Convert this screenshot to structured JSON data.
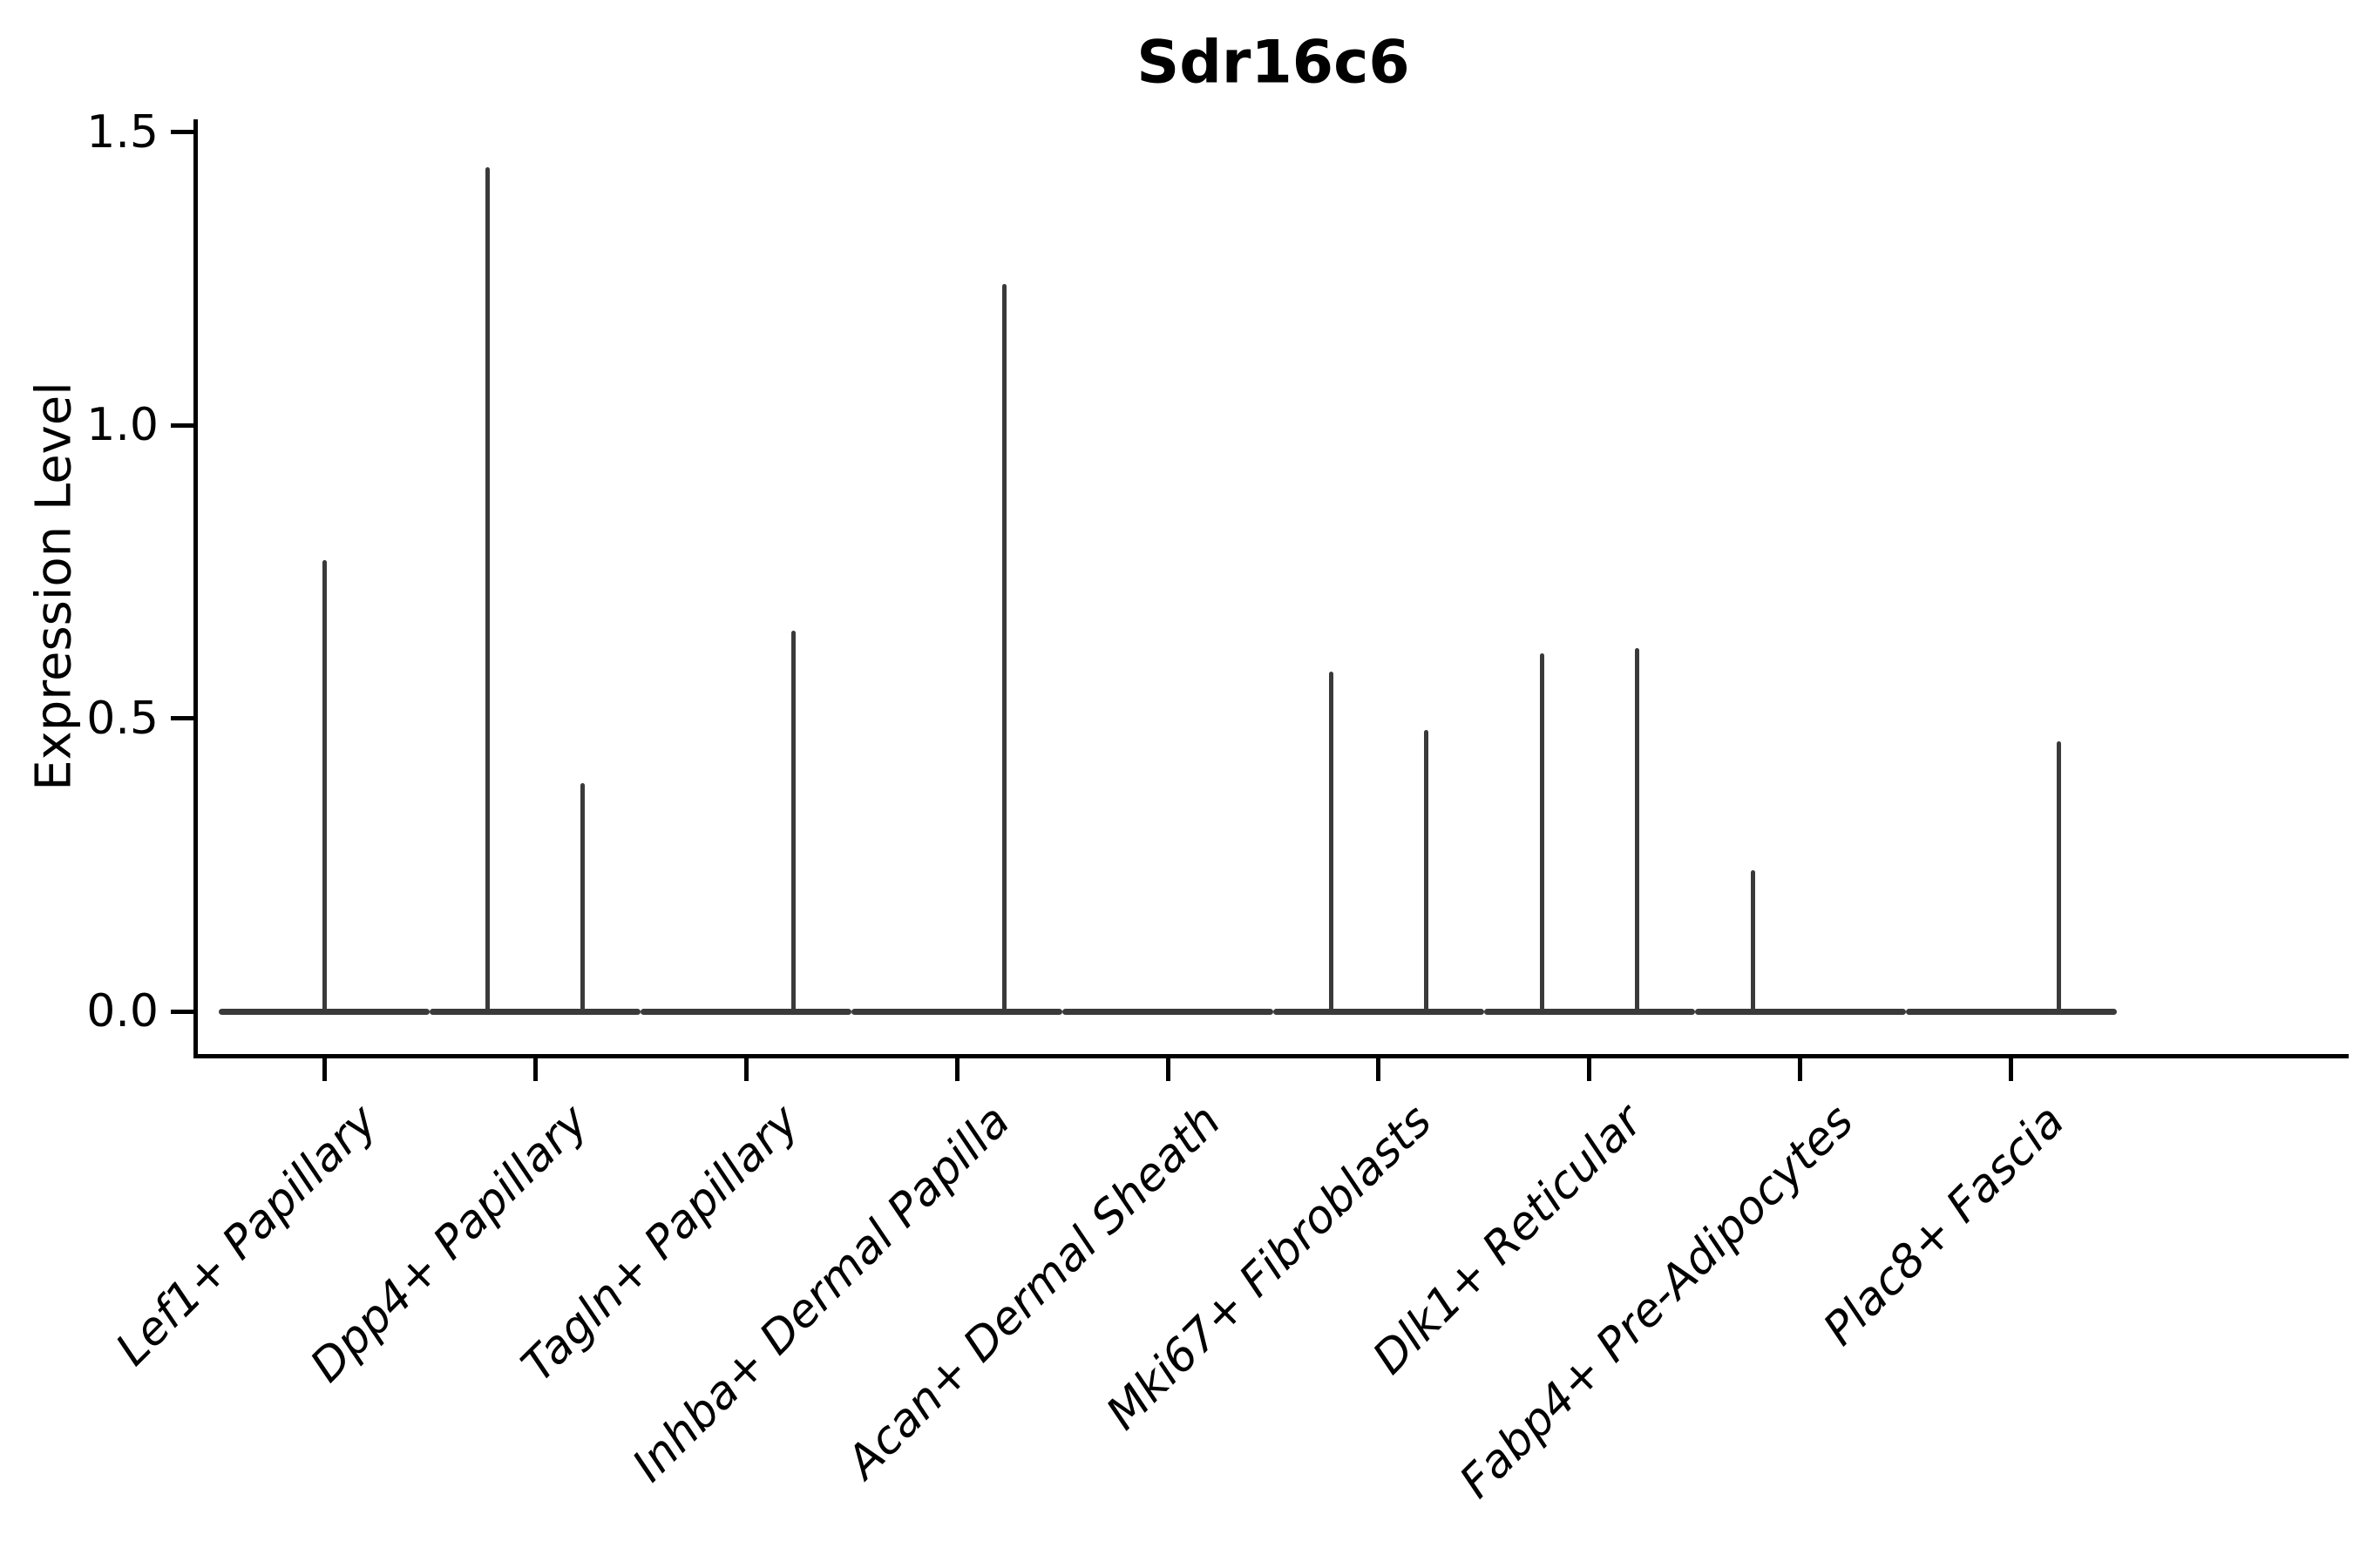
{
  "style": {
    "violin_color": "#3a3a3a",
    "axis_color": "#000000",
    "background": "#ffffff",
    "text_color": "#000000"
  },
  "chart_data": {
    "type": "violin",
    "title": "Sdr16c6",
    "xlabel": "",
    "ylabel": "Expression Level",
    "y_ticks": [
      0.0,
      0.5,
      1.0,
      1.5
    ],
    "y_tick_labels": [
      "0.0",
      "0.5",
      "1.0",
      "1.5"
    ],
    "ylim": [
      -0.07,
      1.53
    ],
    "grid": false,
    "legend": "none",
    "x_tick_label_rotation": 45,
    "categories": [
      "Lef1+ Papillary",
      "Dpp4+ Papillary",
      "Tagln+ Papillary",
      "Inhba+ Dermal Papilla",
      "Acan+ Dermal Sheath",
      "Mki67+ Fibroblasts",
      "Dlk1+ Reticular",
      "Fabp4+ Pre-Adipocytes",
      "Plac8+ Fascia"
    ],
    "description": "Sparse single-cell expression violins: each violin collapses to a flat horizontal bar at 0 with a hairline vertical density tail reaching the maximum expressed value. Offset is in category-width units from the category center (split/dodged violins).",
    "violins": [
      {
        "category": "Lef1+ Papillary",
        "groups": [
          {
            "offset": 0.0,
            "max": 0.77
          }
        ]
      },
      {
        "category": "Dpp4+ Papillary",
        "groups": [
          {
            "offset": -0.225,
            "max": 1.44
          },
          {
            "offset": 0.225,
            "max": 0.39
          }
        ]
      },
      {
        "category": "Tagln+ Papillary",
        "groups": [
          {
            "offset": 0.225,
            "max": 0.65
          }
        ]
      },
      {
        "category": "Inhba+ Dermal Papilla",
        "groups": [
          {
            "offset": 0.225,
            "max": 1.24
          }
        ]
      },
      {
        "category": "Acan+ Dermal Sheath",
        "groups": []
      },
      {
        "category": "Mki67+ Fibroblasts",
        "groups": [
          {
            "offset": -0.225,
            "max": 0.58
          },
          {
            "offset": 0.225,
            "max": 0.48
          }
        ]
      },
      {
        "category": "Dlk1+ Reticular",
        "groups": [
          {
            "offset": -0.225,
            "max": 0.61
          },
          {
            "offset": 0.225,
            "max": 0.62
          }
        ]
      },
      {
        "category": "Fabp4+ Pre-Adipocytes",
        "groups": [
          {
            "offset": -0.225,
            "max": 0.24
          }
        ]
      },
      {
        "category": "Plac8+ Fascia",
        "groups": [
          {
            "offset": 0.225,
            "max": 0.46
          }
        ]
      }
    ]
  }
}
